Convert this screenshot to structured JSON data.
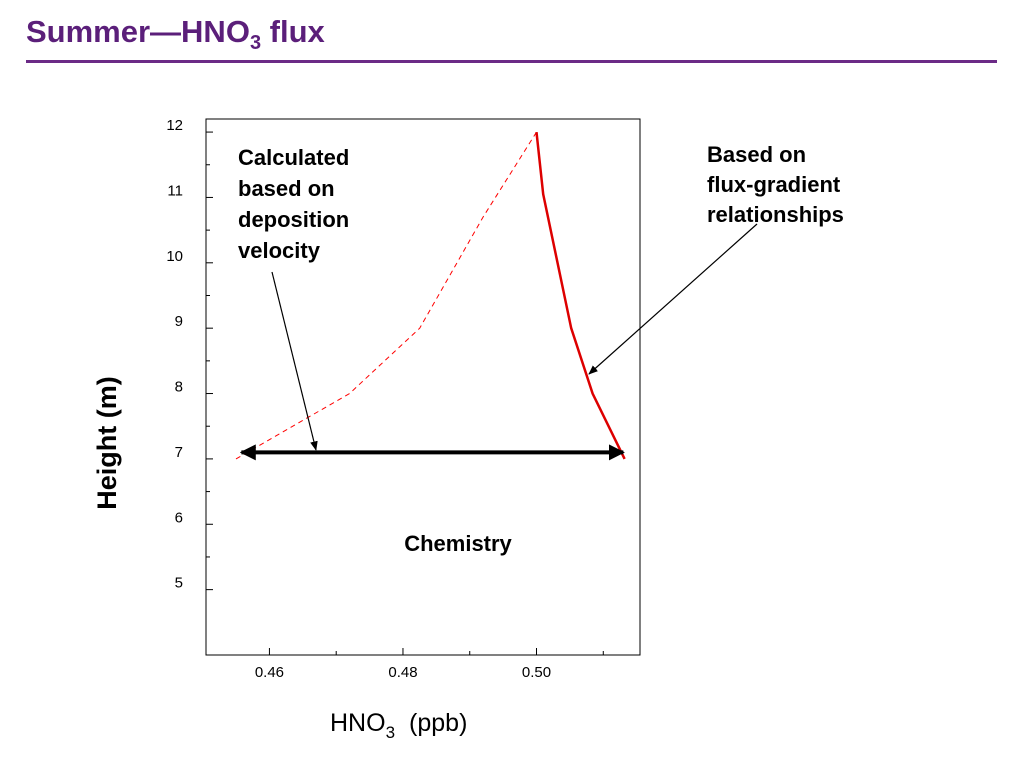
{
  "slide": {
    "title_main": "Summer—HNO",
    "title_sub": "3",
    "title_tail": " flux"
  },
  "chart_data": {
    "type": "line",
    "xlabel_main": "HNO",
    "xlabel_sub": "3",
    "xlabel_unit": "(ppb)",
    "ylabel": "Height (m)",
    "xlim": [
      0.4505,
      0.5155
    ],
    "ylim": [
      4.0,
      12.2
    ],
    "x_ticks": [
      0.46,
      0.48,
      0.5
    ],
    "x_tick_labels": [
      "0.46",
      "0.48",
      "0.50"
    ],
    "y_ticks": [
      5,
      6,
      7,
      8,
      9,
      10,
      11,
      12
    ],
    "y_tick_labels": [
      "5",
      "6",
      "7",
      "8",
      "9",
      "10",
      "11",
      "12"
    ],
    "grid": false,
    "series": [
      {
        "style": "dashed",
        "color": "#ff0000",
        "x": [
          0.455,
          0.472,
          0.4825,
          0.492,
          0.5
        ],
        "y": [
          7.0,
          8.0,
          9.0,
          10.7,
          12.0
        ]
      },
      {
        "style": "solid",
        "color": "#dd0000",
        "x": [
          0.5,
          0.501,
          0.5052,
          0.5084,
          0.5132
        ],
        "y": [
          12.0,
          11.05,
          9.0,
          8.0,
          7.0
        ]
      }
    ],
    "annotations": {
      "calculated_lines": [
        "Calculated",
        "based on",
        "deposition",
        "velocity"
      ],
      "flux_lines": [
        "Based on",
        "flux-gradient",
        "relationships"
      ],
      "chemistry": "Chemistry"
    },
    "chemistry_span": {
      "x": [
        0.4558,
        0.513
      ],
      "y": 7.1
    }
  }
}
